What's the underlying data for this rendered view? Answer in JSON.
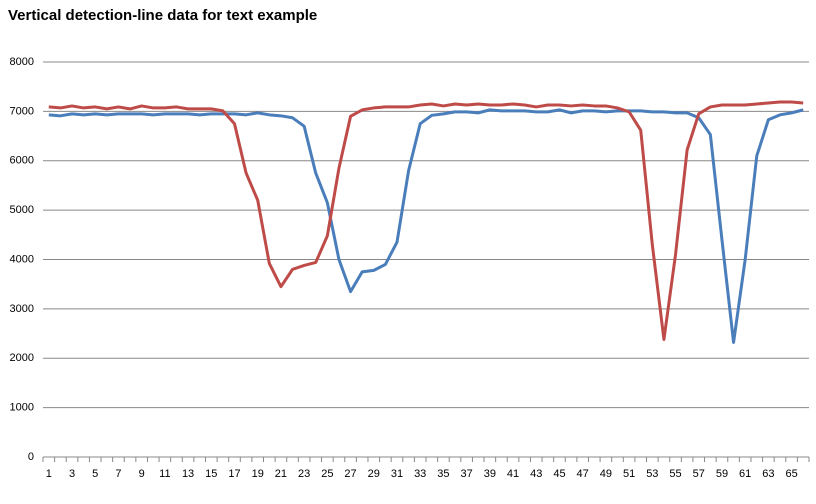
{
  "chart_data": {
    "type": "line",
    "title": "Vertical detection-line data for text example",
    "categories": [
      "1",
      null,
      "3",
      null,
      "5",
      null,
      "7",
      null,
      "9",
      null,
      "11",
      null,
      "13",
      null,
      "15",
      null,
      "17",
      null,
      "19",
      null,
      "21",
      null,
      "23",
      null,
      "25",
      null,
      "27",
      null,
      "29",
      null,
      "31",
      null,
      "33",
      null,
      "35",
      null,
      "37",
      null,
      "39",
      null,
      "41",
      null,
      "43",
      null,
      "45",
      null,
      "47",
      null,
      "49",
      null,
      "51",
      null,
      "53",
      null,
      "55",
      null,
      "57",
      null,
      "59",
      null,
      "61",
      null,
      "63",
      null,
      "65",
      null
    ],
    "series": [
      {
        "color": "#4a7ebb",
        "values": [
          6930,
          6910,
          6950,
          6930,
          6950,
          6930,
          6950,
          6950,
          6950,
          6930,
          6950,
          6950,
          6950,
          6930,
          6950,
          6950,
          6950,
          6930,
          6970,
          6930,
          6910,
          6870,
          6700,
          5750,
          5150,
          4000,
          3350,
          3750,
          3780,
          3900,
          4350,
          5800,
          6750,
          6920,
          6950,
          6990,
          6990,
          6970,
          7030,
          7010,
          7010,
          7010,
          6990,
          6990,
          7030,
          6970,
          7010,
          7010,
          6990,
          7010,
          7010,
          7010,
          6990,
          6990,
          6970,
          6970,
          6870,
          6530,
          4400,
          2320,
          4000,
          6100,
          6830,
          6930,
          6970,
          7030
        ]
      },
      {
        "color": "#be4b48",
        "values": [
          7090,
          7070,
          7110,
          7070,
          7090,
          7050,
          7090,
          7050,
          7110,
          7070,
          7070,
          7090,
          7050,
          7050,
          7050,
          7010,
          6750,
          5750,
          5200,
          3920,
          3450,
          3800,
          3880,
          3940,
          4480,
          5850,
          6900,
          7030,
          7070,
          7090,
          7090,
          7090,
          7130,
          7150,
          7110,
          7150,
          7130,
          7150,
          7130,
          7130,
          7150,
          7130,
          7090,
          7130,
          7130,
          7110,
          7130,
          7110,
          7110,
          7070,
          6990,
          6620,
          4300,
          2380,
          4100,
          6220,
          6950,
          7090,
          7130,
          7130,
          7130,
          7150,
          7170,
          7190,
          7190,
          7170
        ]
      }
    ],
    "ylim": [
      0,
      8000
    ],
    "yticks": [
      0,
      1000,
      2000,
      3000,
      4000,
      5000,
      6000,
      7000,
      8000
    ],
    "grid": true
  }
}
